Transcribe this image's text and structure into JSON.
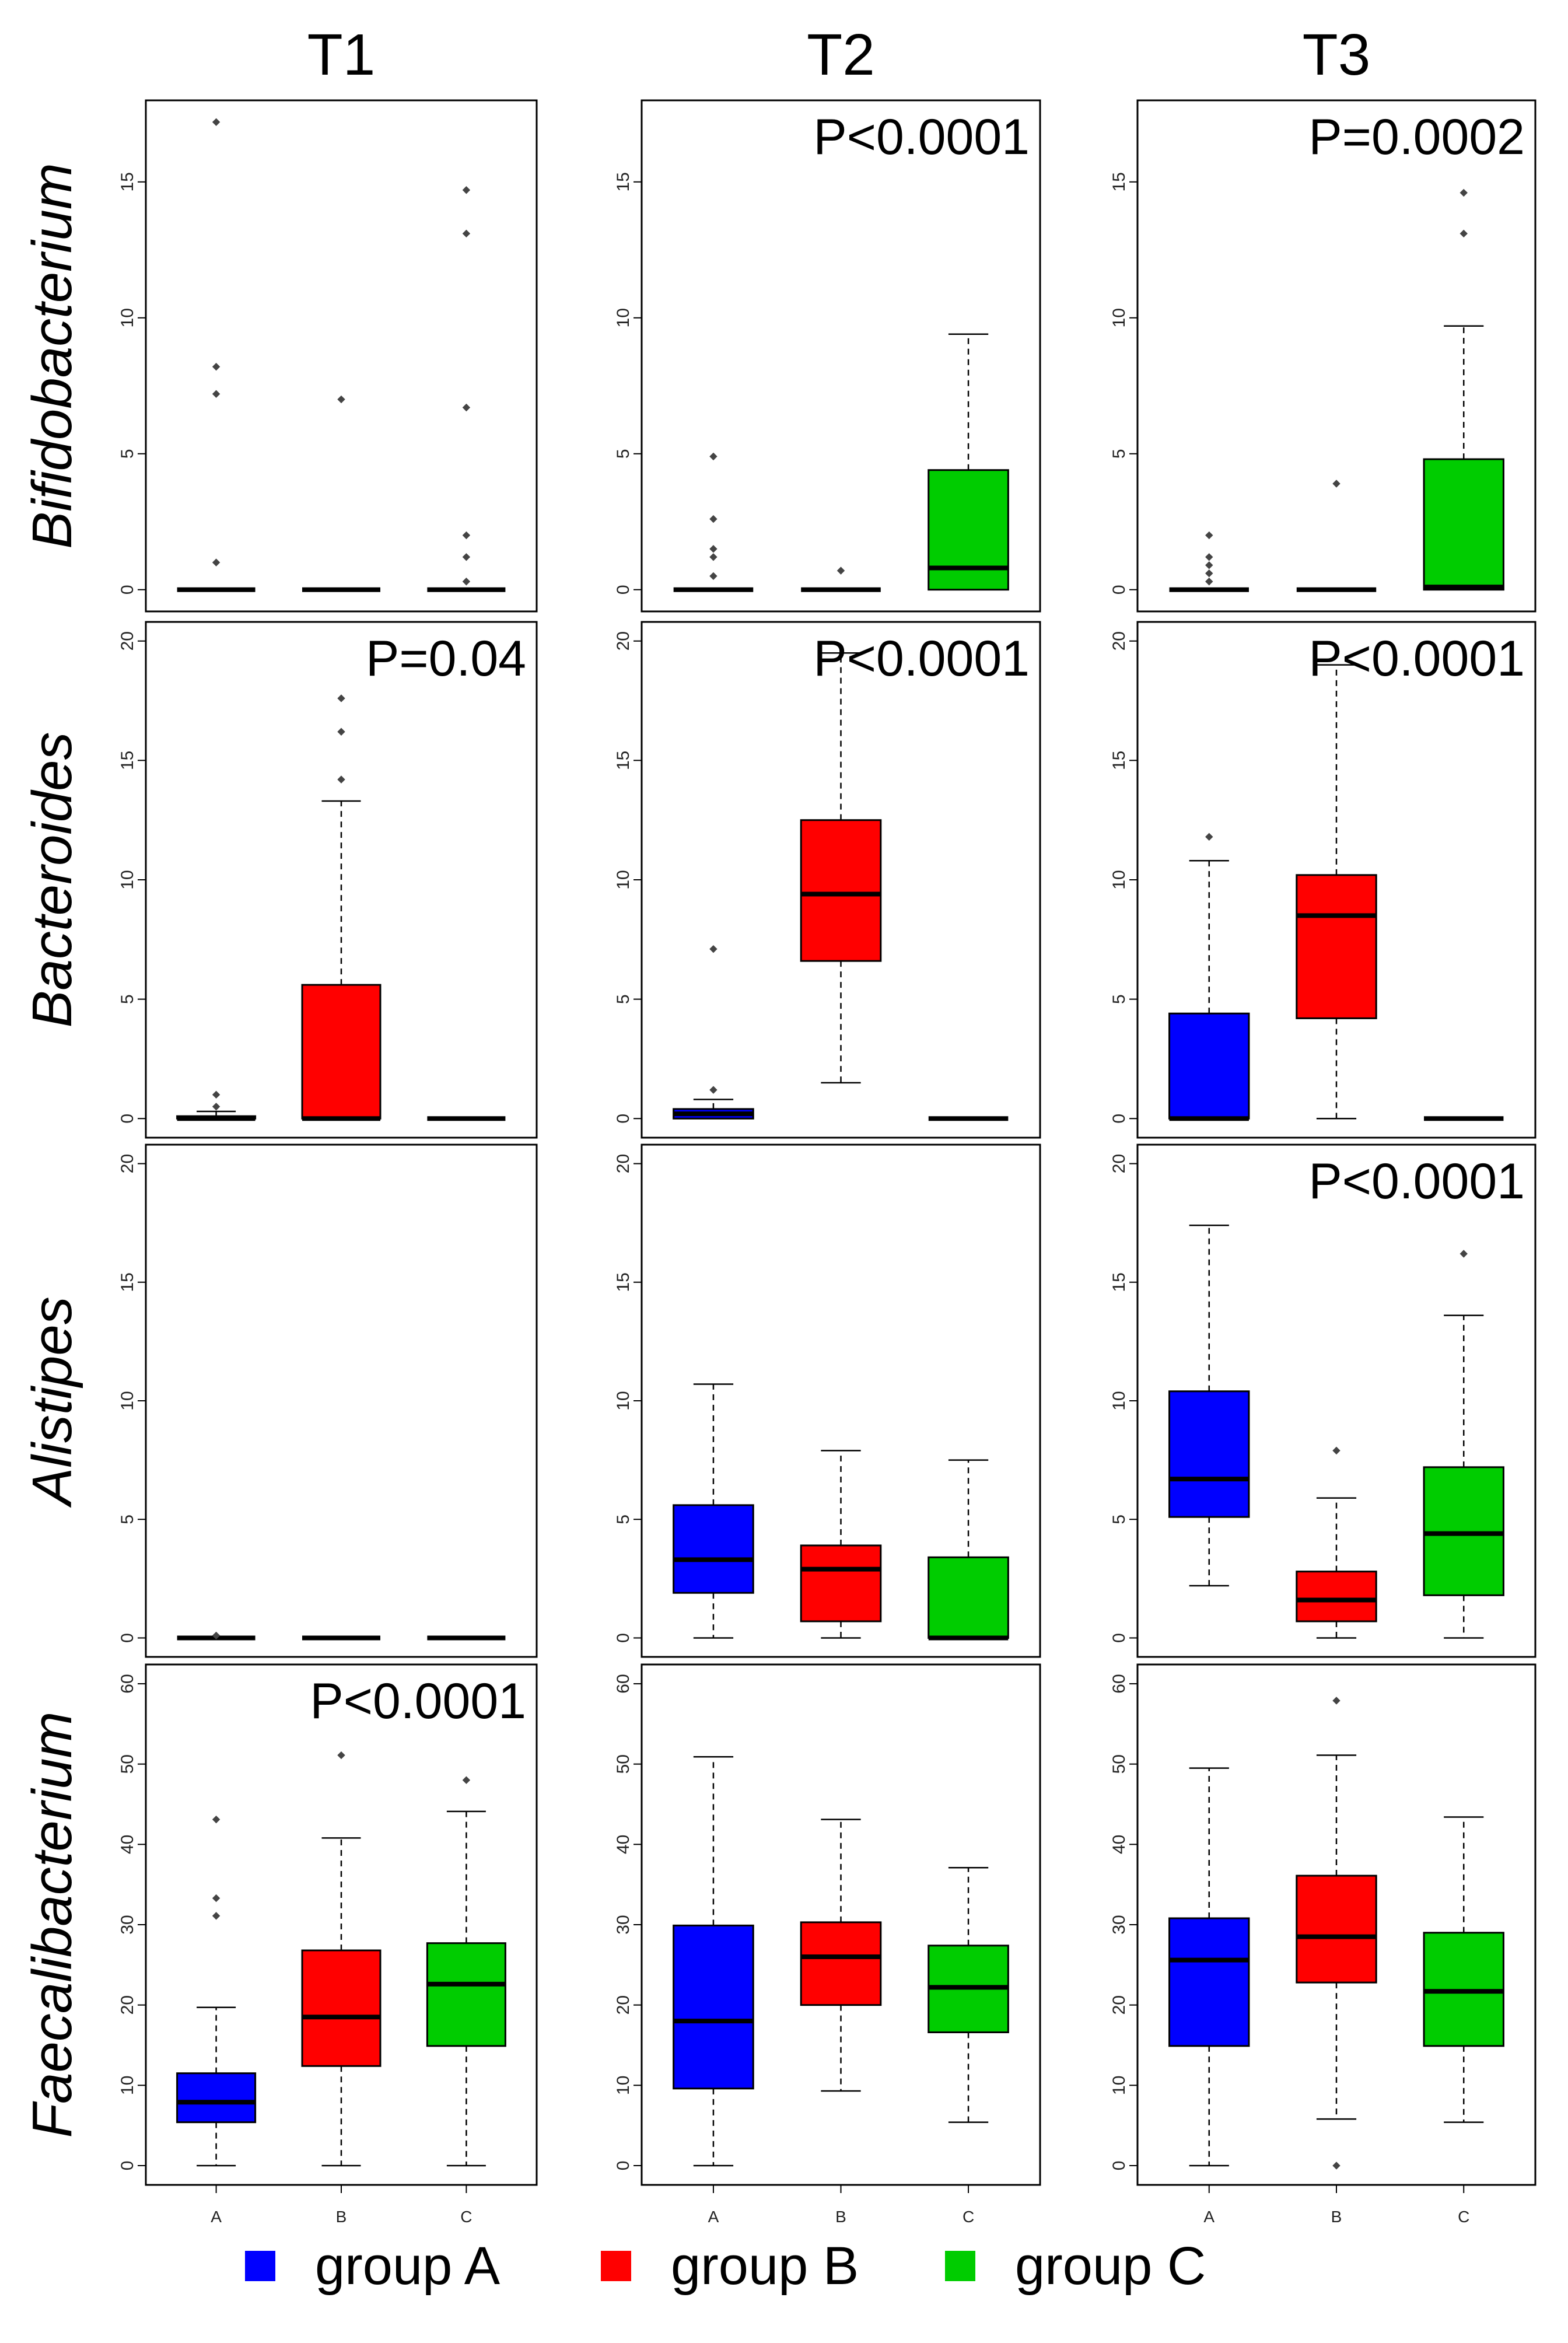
{
  "chart_data": {
    "type": "boxplot",
    "columns": [
      "T1",
      "T2",
      "T3"
    ],
    "rows": [
      "Bifidobacterium",
      "Bacteroides",
      "Alistipes",
      "Faecalibacterium"
    ],
    "categories": [
      "A",
      "B",
      "C"
    ],
    "row_axes": [
      {
        "ylim": [
          -0.8,
          18.0
        ],
        "ticks": [
          0,
          5,
          10,
          15
        ]
      },
      {
        "ylim": [
          -0.8,
          20.8
        ],
        "ticks": [
          0,
          5,
          10,
          15,
          20
        ]
      },
      {
        "ylim": [
          -0.8,
          20.8
        ],
        "ticks": [
          0,
          5,
          10,
          15,
          20
        ]
      },
      {
        "ylim": [
          -2.4,
          62.4
        ],
        "ticks": [
          0,
          10,
          20,
          30,
          40,
          50,
          60
        ]
      }
    ],
    "legend": {
      "position": "bottom",
      "items": [
        {
          "label": "group A",
          "color": "#0000ff"
        },
        {
          "label": "group B",
          "color": "#ff0000"
        },
        {
          "label": "group C",
          "color": "#00cc00"
        }
      ]
    },
    "panels": [
      {
        "row": 0,
        "col": 0,
        "pvalue": "",
        "boxes": [
          {
            "group": "A",
            "color": "#0000ff",
            "q1": 0,
            "median": 0,
            "q3": 0,
            "whisker_low": 0,
            "whisker_high": 0,
            "outliers": [
              1.0,
              7.2,
              8.2,
              17.2
            ]
          },
          {
            "group": "B",
            "color": "#ff0000",
            "q1": 0,
            "median": 0,
            "q3": 0,
            "whisker_low": 0,
            "whisker_high": 0,
            "outliers": [
              7.0
            ]
          },
          {
            "group": "C",
            "color": "#00cc00",
            "q1": 0,
            "median": 0,
            "q3": 0,
            "whisker_low": 0,
            "whisker_high": 0,
            "outliers": [
              0.3,
              1.2,
              2.0,
              6.7,
              13.1,
              14.7
            ]
          }
        ]
      },
      {
        "row": 0,
        "col": 1,
        "pvalue": "P<0.0001",
        "boxes": [
          {
            "group": "A",
            "color": "#0000ff",
            "q1": 0,
            "median": 0,
            "q3": 0,
            "whisker_low": 0,
            "whisker_high": 0,
            "outliers": [
              0.5,
              1.2,
              1.5,
              2.6,
              4.9
            ]
          },
          {
            "group": "B",
            "color": "#ff0000",
            "q1": 0,
            "median": 0,
            "q3": 0,
            "whisker_low": 0,
            "whisker_high": 0,
            "outliers": [
              0.7
            ]
          },
          {
            "group": "C",
            "color": "#00cc00",
            "q1": 0,
            "median": 0.8,
            "q3": 4.4,
            "whisker_low": 0,
            "whisker_high": 9.4,
            "outliers": []
          }
        ]
      },
      {
        "row": 0,
        "col": 2,
        "pvalue": "P=0.0002",
        "boxes": [
          {
            "group": "A",
            "color": "#0000ff",
            "q1": 0,
            "median": 0,
            "q3": 0,
            "whisker_low": 0,
            "whisker_high": 0,
            "outliers": [
              0.3,
              0.6,
              0.9,
              1.2,
              2.0
            ]
          },
          {
            "group": "B",
            "color": "#ff0000",
            "q1": 0,
            "median": 0,
            "q3": 0,
            "whisker_low": 0,
            "whisker_high": 0,
            "outliers": [
              3.9
            ]
          },
          {
            "group": "C",
            "color": "#00cc00",
            "q1": 0,
            "median": 0.1,
            "q3": 4.8,
            "whisker_low": 0,
            "whisker_high": 9.7,
            "outliers": [
              13.1,
              14.6
            ]
          }
        ]
      },
      {
        "row": 1,
        "col": 0,
        "pvalue": "P=0.04",
        "boxes": [
          {
            "group": "A",
            "color": "#0000ff",
            "q1": 0,
            "median": 0,
            "q3": 0.1,
            "whisker_low": 0,
            "whisker_high": 0.3,
            "outliers": [
              0.5,
              1.0
            ]
          },
          {
            "group": "B",
            "color": "#ff0000",
            "q1": 0,
            "median": 0,
            "q3": 5.6,
            "whisker_low": 0,
            "whisker_high": 13.3,
            "outliers": [
              14.2,
              16.2,
              17.6
            ]
          },
          {
            "group": "C",
            "color": "#00cc00",
            "q1": 0,
            "median": 0,
            "q3": 0,
            "whisker_low": 0,
            "whisker_high": 0,
            "outliers": []
          }
        ]
      },
      {
        "row": 1,
        "col": 1,
        "pvalue": "P<0.0001",
        "boxes": [
          {
            "group": "A",
            "color": "#0000ff",
            "q1": 0,
            "median": 0.2,
            "q3": 0.4,
            "whisker_low": 0,
            "whisker_high": 0.8,
            "outliers": [
              1.2,
              7.1
            ]
          },
          {
            "group": "B",
            "color": "#ff0000",
            "q1": 6.6,
            "median": 9.4,
            "q3": 12.5,
            "whisker_low": 1.5,
            "whisker_high": 19.5,
            "outliers": []
          },
          {
            "group": "C",
            "color": "#00cc00",
            "q1": 0,
            "median": 0,
            "q3": 0,
            "whisker_low": 0,
            "whisker_high": 0,
            "outliers": []
          }
        ]
      },
      {
        "row": 1,
        "col": 2,
        "pvalue": "P<0.0001",
        "boxes": [
          {
            "group": "A",
            "color": "#0000ff",
            "q1": 0,
            "median": 0,
            "q3": 4.4,
            "whisker_low": 0,
            "whisker_high": 10.8,
            "outliers": [
              11.8
            ]
          },
          {
            "group": "B",
            "color": "#ff0000",
            "q1": 4.2,
            "median": 8.5,
            "q3": 10.2,
            "whisker_low": 0,
            "whisker_high": 19.0,
            "outliers": []
          },
          {
            "group": "C",
            "color": "#00cc00",
            "q1": 0,
            "median": 0,
            "q3": 0,
            "whisker_low": 0,
            "whisker_high": 0,
            "outliers": []
          }
        ]
      },
      {
        "row": 2,
        "col": 0,
        "pvalue": "",
        "boxes": [
          {
            "group": "A",
            "color": "#0000ff",
            "q1": 0,
            "median": 0,
            "q3": 0,
            "whisker_low": 0,
            "whisker_high": 0,
            "outliers": [
              0.1
            ]
          },
          {
            "group": "B",
            "color": "#ff0000",
            "q1": 0,
            "median": 0,
            "q3": 0,
            "whisker_low": 0,
            "whisker_high": 0,
            "outliers": []
          },
          {
            "group": "C",
            "color": "#00cc00",
            "q1": 0,
            "median": 0,
            "q3": 0,
            "whisker_low": 0,
            "whisker_high": 0,
            "outliers": []
          }
        ]
      },
      {
        "row": 2,
        "col": 1,
        "pvalue": "",
        "boxes": [
          {
            "group": "A",
            "color": "#0000ff",
            "q1": 1.9,
            "median": 3.3,
            "q3": 5.6,
            "whisker_low": 0,
            "whisker_high": 10.7,
            "outliers": []
          },
          {
            "group": "B",
            "color": "#ff0000",
            "q1": 0.7,
            "median": 2.9,
            "q3": 3.9,
            "whisker_low": 0,
            "whisker_high": 7.9,
            "outliers": []
          },
          {
            "group": "C",
            "color": "#00cc00",
            "q1": 0,
            "median": 0,
            "q3": 3.4,
            "whisker_low": 0,
            "whisker_high": 7.5,
            "outliers": []
          }
        ]
      },
      {
        "row": 2,
        "col": 2,
        "pvalue": "P<0.0001",
        "boxes": [
          {
            "group": "A",
            "color": "#0000ff",
            "q1": 5.1,
            "median": 6.7,
            "q3": 10.4,
            "whisker_low": 2.2,
            "whisker_high": 17.4,
            "outliers": []
          },
          {
            "group": "B",
            "color": "#ff0000",
            "q1": 0.7,
            "median": 1.6,
            "q3": 2.8,
            "whisker_low": 0,
            "whisker_high": 5.9,
            "outliers": [
              7.9
            ]
          },
          {
            "group": "C",
            "color": "#00cc00",
            "q1": 1.8,
            "median": 4.4,
            "q3": 7.2,
            "whisker_low": 0,
            "whisker_high": 13.6,
            "outliers": [
              16.2
            ]
          }
        ]
      },
      {
        "row": 3,
        "col": 0,
        "pvalue": "P<0.0001",
        "boxes": [
          {
            "group": "A",
            "color": "#0000ff",
            "q1": 5.4,
            "median": 7.9,
            "q3": 11.5,
            "whisker_low": 0,
            "whisker_high": 19.7,
            "outliers": [
              31.1,
              33.3,
              43.1
            ]
          },
          {
            "group": "B",
            "color": "#ff0000",
            "q1": 12.4,
            "median": 18.5,
            "q3": 26.8,
            "whisker_low": 0,
            "whisker_high": 40.8,
            "outliers": [
              51.1
            ]
          },
          {
            "group": "C",
            "color": "#00cc00",
            "q1": 14.9,
            "median": 22.6,
            "q3": 27.7,
            "whisker_low": 0,
            "whisker_high": 44.1,
            "outliers": [
              48.0
            ]
          }
        ]
      },
      {
        "row": 3,
        "col": 1,
        "pvalue": "",
        "boxes": [
          {
            "group": "A",
            "color": "#0000ff",
            "q1": 9.6,
            "median": 18.0,
            "q3": 29.9,
            "whisker_low": 0,
            "whisker_high": 50.9,
            "outliers": []
          },
          {
            "group": "B",
            "color": "#ff0000",
            "q1": 20.0,
            "median": 26.0,
            "q3": 30.3,
            "whisker_low": 9.3,
            "whisker_high": 43.1,
            "outliers": []
          },
          {
            "group": "C",
            "color": "#00cc00",
            "q1": 16.6,
            "median": 22.2,
            "q3": 27.4,
            "whisker_low": 5.4,
            "whisker_high": 37.1,
            "outliers": []
          }
        ]
      },
      {
        "row": 3,
        "col": 2,
        "pvalue": "",
        "boxes": [
          {
            "group": "A",
            "color": "#0000ff",
            "q1": 14.9,
            "median": 25.6,
            "q3": 30.8,
            "whisker_low": 0,
            "whisker_high": 49.5,
            "outliers": []
          },
          {
            "group": "B",
            "color": "#ff0000",
            "q1": 22.8,
            "median": 28.5,
            "q3": 36.1,
            "whisker_low": 5.8,
            "whisker_high": 51.1,
            "outliers": [
              0,
              57.9
            ]
          },
          {
            "group": "C",
            "color": "#00cc00",
            "q1": 14.9,
            "median": 21.7,
            "q3": 29.0,
            "whisker_low": 5.4,
            "whisker_high": 43.4,
            "outliers": []
          }
        ]
      }
    ]
  }
}
